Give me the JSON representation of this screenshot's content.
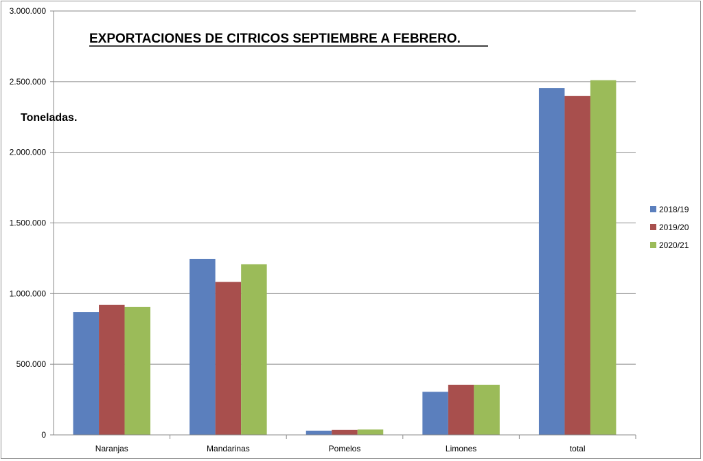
{
  "chart_data": {
    "type": "bar",
    "title": "EXPORTACIONES DE CITRICOS SEPTIEMBRE A  FEBRERO.",
    "ylabel": "Toneladas.",
    "xlabel": "",
    "categories": [
      "Naranjas",
      "Mandarinas",
      "Pomelos",
      "Limones",
      "total"
    ],
    "series": [
      {
        "name": "2018/19",
        "color": "#5b7fbd",
        "values": [
          870000,
          1245000,
          30000,
          305000,
          2455000
        ]
      },
      {
        "name": "2019/20",
        "color": "#a84f4d",
        "values": [
          920000,
          1083000,
          35000,
          355000,
          2398000
        ]
      },
      {
        "name": "2020/21",
        "color": "#9bbb59",
        "values": [
          905000,
          1208000,
          38000,
          355000,
          2510000
        ]
      }
    ],
    "ylim": [
      0,
      3000000
    ],
    "yticks": [
      0,
      500000,
      1000000,
      1500000,
      2000000,
      2500000,
      3000000
    ],
    "ytick_labels": [
      "0",
      "500.000",
      "1.000.000",
      "1.500.000",
      "2.000.000",
      "2.500.000",
      "3.000.000"
    ],
    "grid": true,
    "legend_position": "right"
  }
}
